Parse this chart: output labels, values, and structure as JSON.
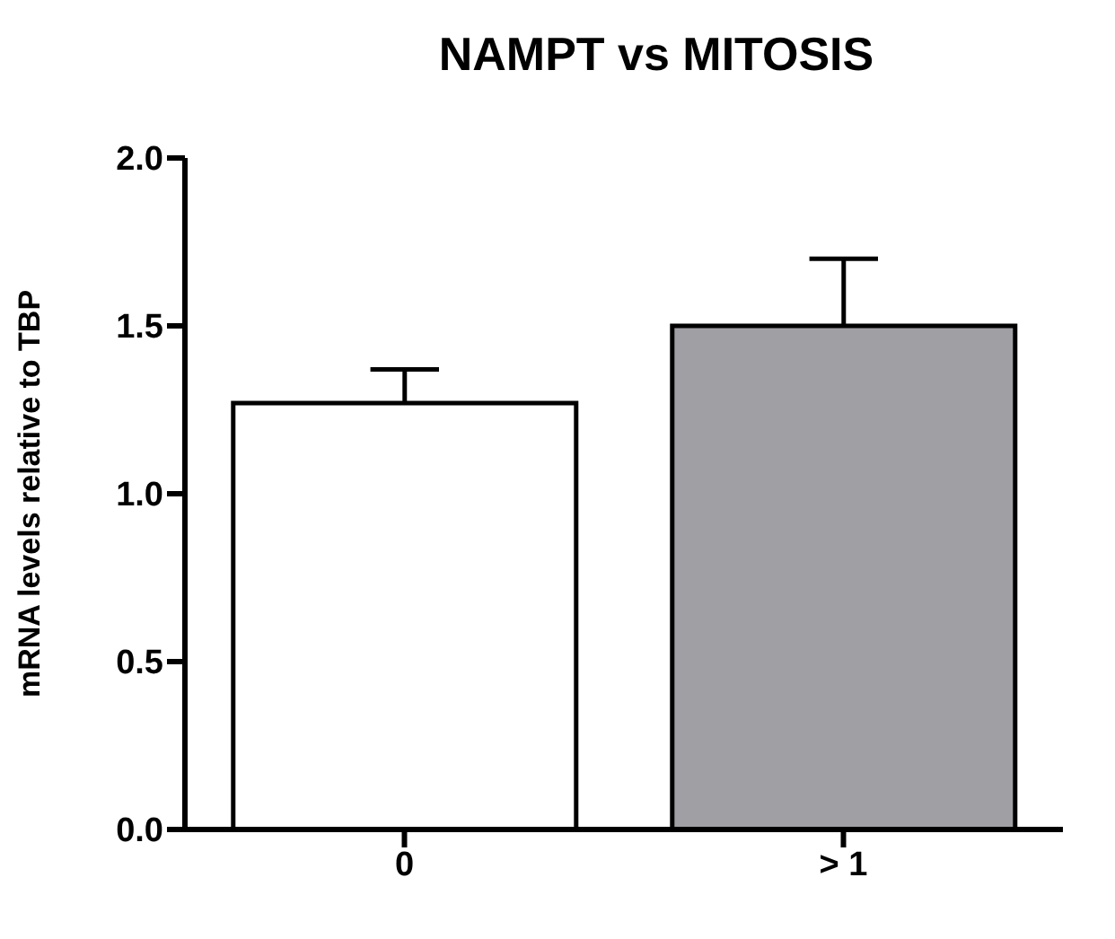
{
  "chart_data": {
    "type": "bar",
    "title": "NAMPT vs MITOSIS",
    "ylabel": "mRNA levels relative to TBP",
    "categories": [
      "0",
      "> 1"
    ],
    "values": [
      1.27,
      1.5
    ],
    "colors": [
      "#ffffff",
      "#a09fa4"
    ],
    "errors": [
      [
        1.27,
        1.37
      ],
      [
        1.5,
        1.7
      ]
    ],
    "ylim": [
      0,
      2
    ],
    "yticks": [
      {
        "value": 0,
        "label": "0.0"
      },
      {
        "value": 0.5,
        "label": "0.5"
      },
      {
        "value": 1,
        "label": "1.0"
      },
      {
        "value": 1.5,
        "label": "1.5"
      },
      {
        "value": 2,
        "label": "2.0"
      }
    ],
    "grid": false
  }
}
